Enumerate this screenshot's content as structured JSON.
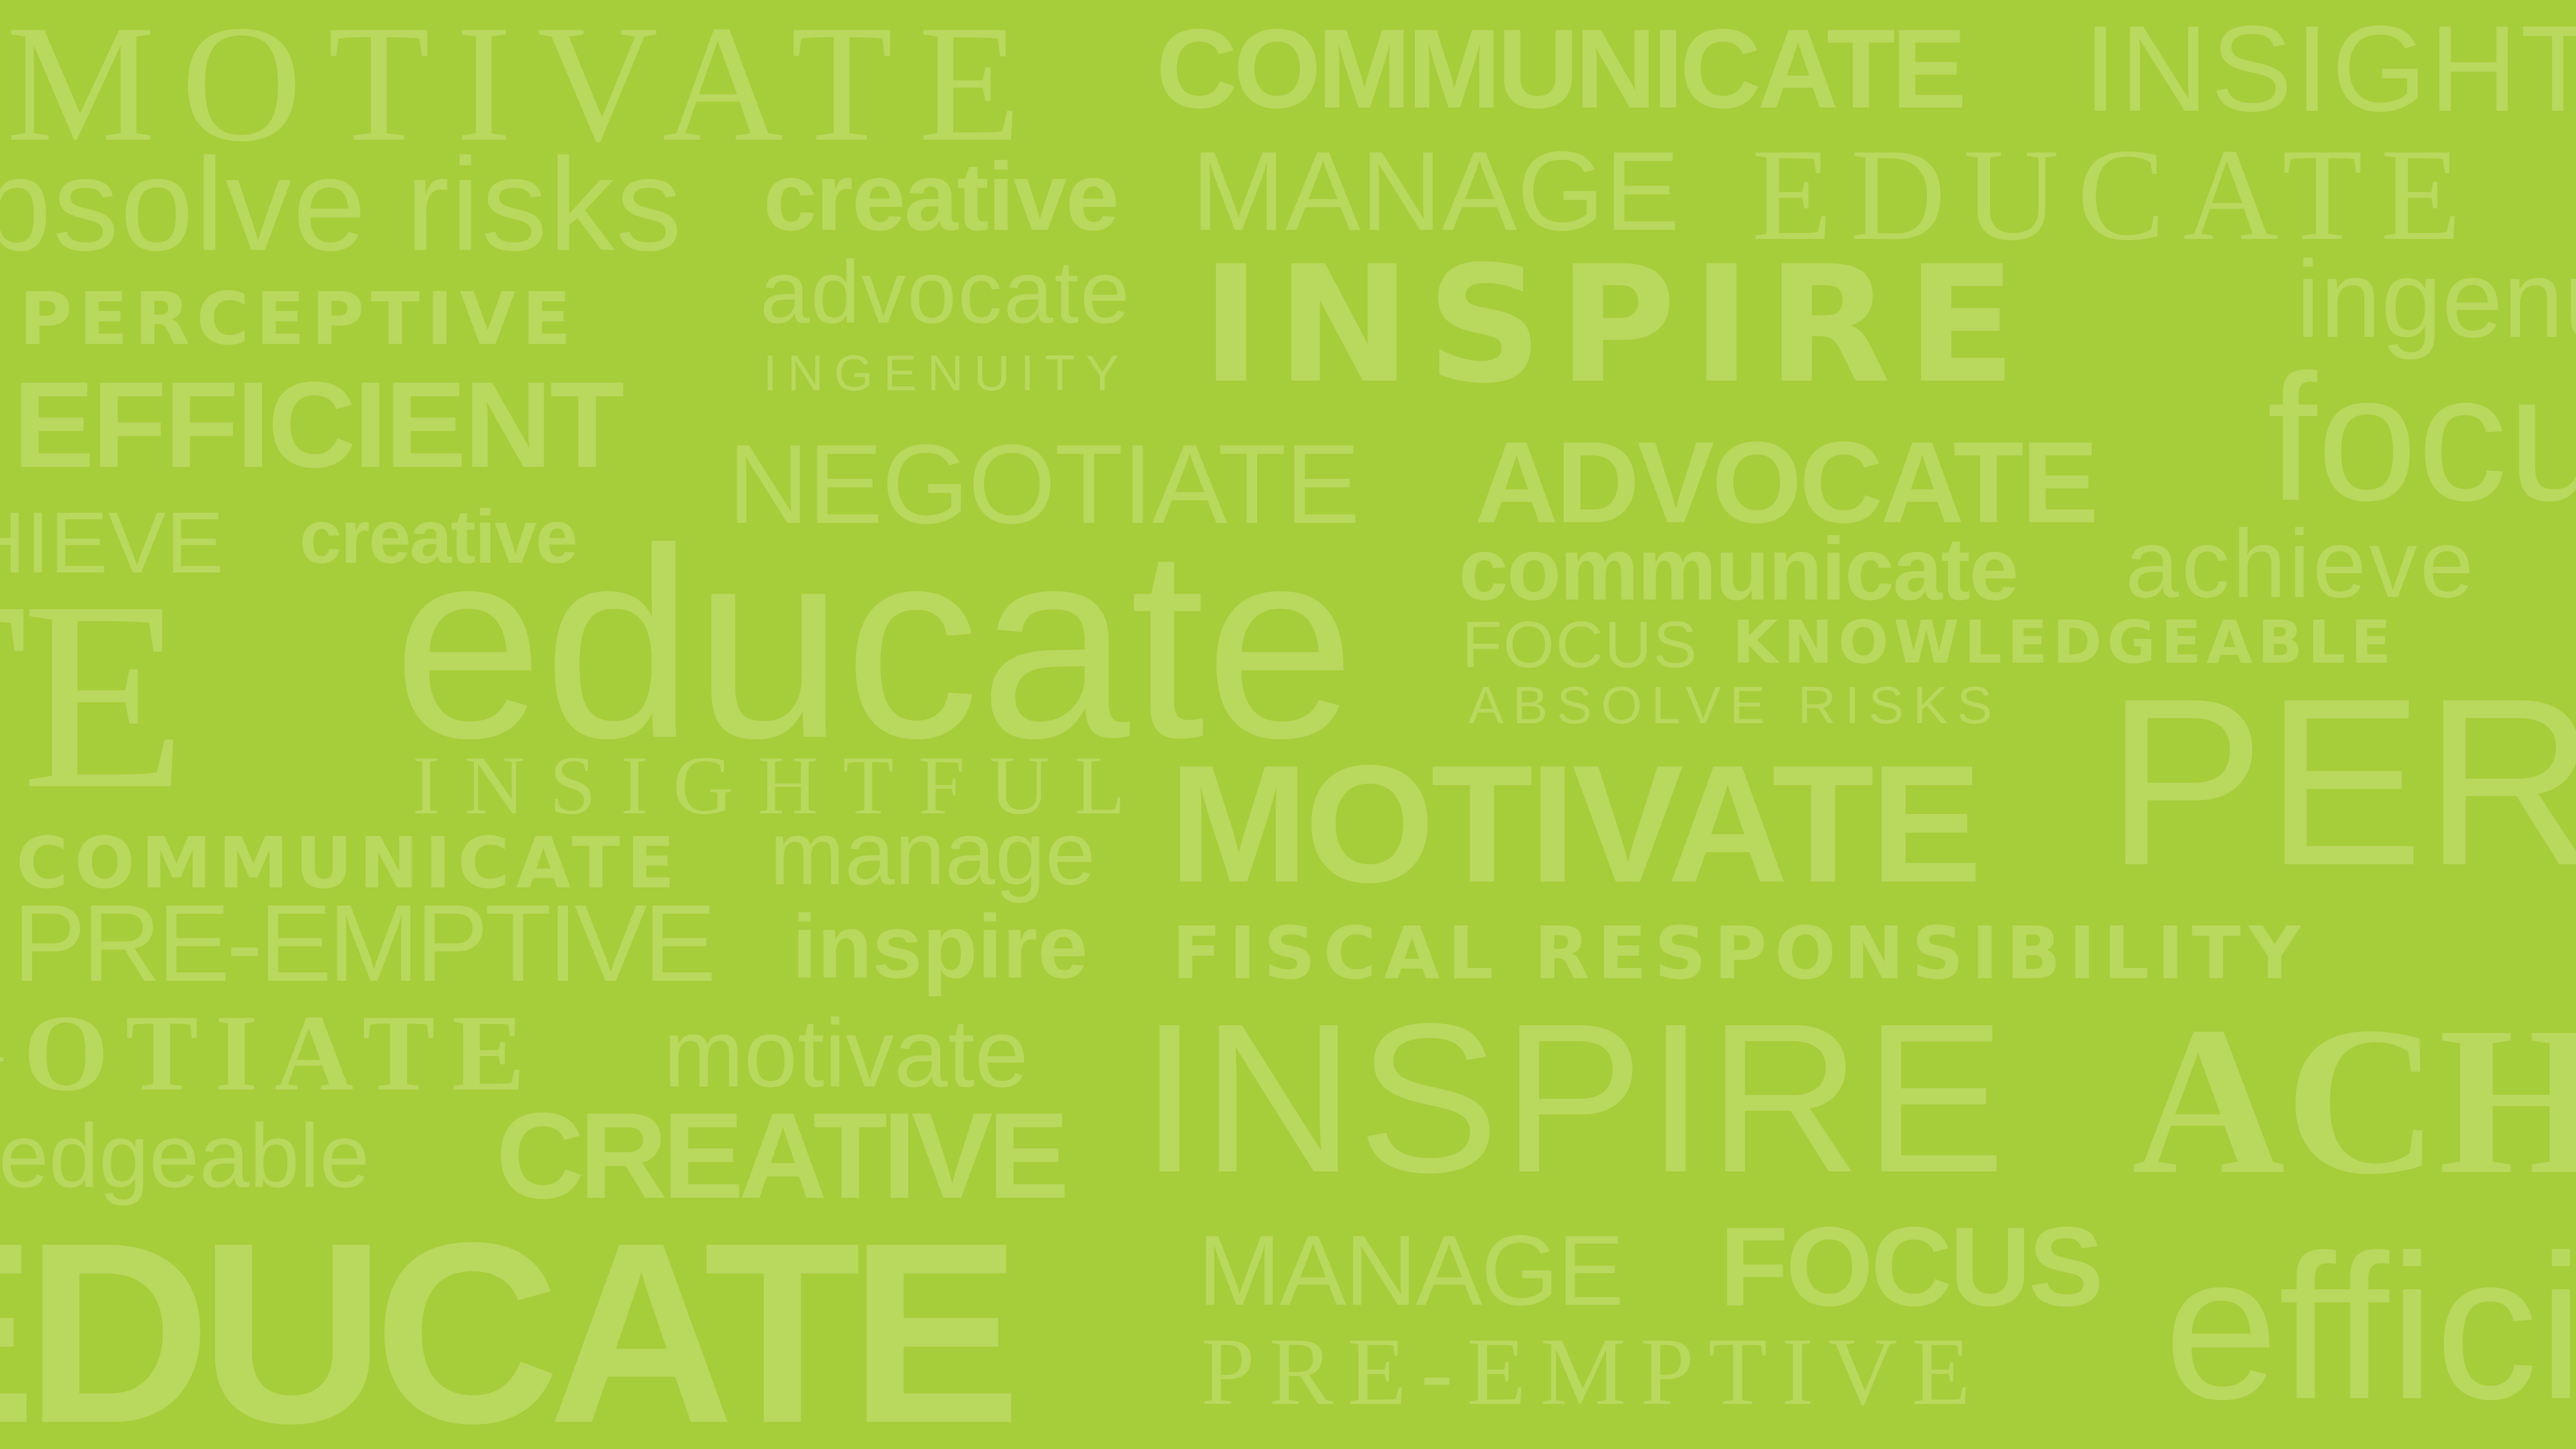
{
  "colors": {
    "background": "#a6cd3a",
    "word": "#b9d85e"
  },
  "words": {
    "r1_motivate": "MOTIVATE",
    "r1_communicate": "COMMUNICATE",
    "r1_insight": "INSIGHT",
    "r2_absolve": "absolve risks",
    "r2_creative": "creative",
    "r2_manage": "MANAGE",
    "r2_educate": "EDUCATE",
    "r3_perceptive": "PERCEPTIVE",
    "r3_advocate": "advocate",
    "r3_inspire": "INSPIRE",
    "r3_ingenuity_lower": "ingenuity",
    "r3_ingenuity": "INGENUITY",
    "r4_efficient": "EFFICIENT",
    "r4_negotiate": "NEGOTIATE",
    "r4_advocate": "ADVOCATE",
    "r4_focus": "focus",
    "r5_achieve": "ACHIEVE",
    "r5_creative": "creative",
    "r5_communicate": "communicate",
    "r5_achieve_lower": "achieve",
    "r6_te": "ATE",
    "r6_educate": "educate",
    "r6_focus": "FOCUS",
    "r6_knowledgeable": "KNOWLEDGEABLE",
    "r6_absolve": "ABSOLVE RISKS",
    "r7_insightful": "INSIGHTFUL",
    "r7_motivate": "MOTIVATE",
    "r7_per": "PERCEPTIVE",
    "r8_communicate": "COMMUNICATE",
    "r8_manage": "manage",
    "r9_preemptive": "PRE-EMPTIVE",
    "r9_inspire": "inspire",
    "r9_fiscal": "FISCAL RESPONSIBILITY",
    "r10_negotiate": "NEGOTIATE",
    "r10_motivate": "motivate",
    "r10_inspire": "INSPIRE",
    "r10_ac": "ACHIEVE",
    "r11_knowledgeable": "knowledgeable",
    "r11_creative": "CREATIVE",
    "r12_educate": "EDUCATE",
    "r12_manage": "MANAGE",
    "r12_focus": "FOCUS",
    "r12_preemptive": "PRE-EMPTIVE",
    "r12_efficient": "efficient"
  }
}
